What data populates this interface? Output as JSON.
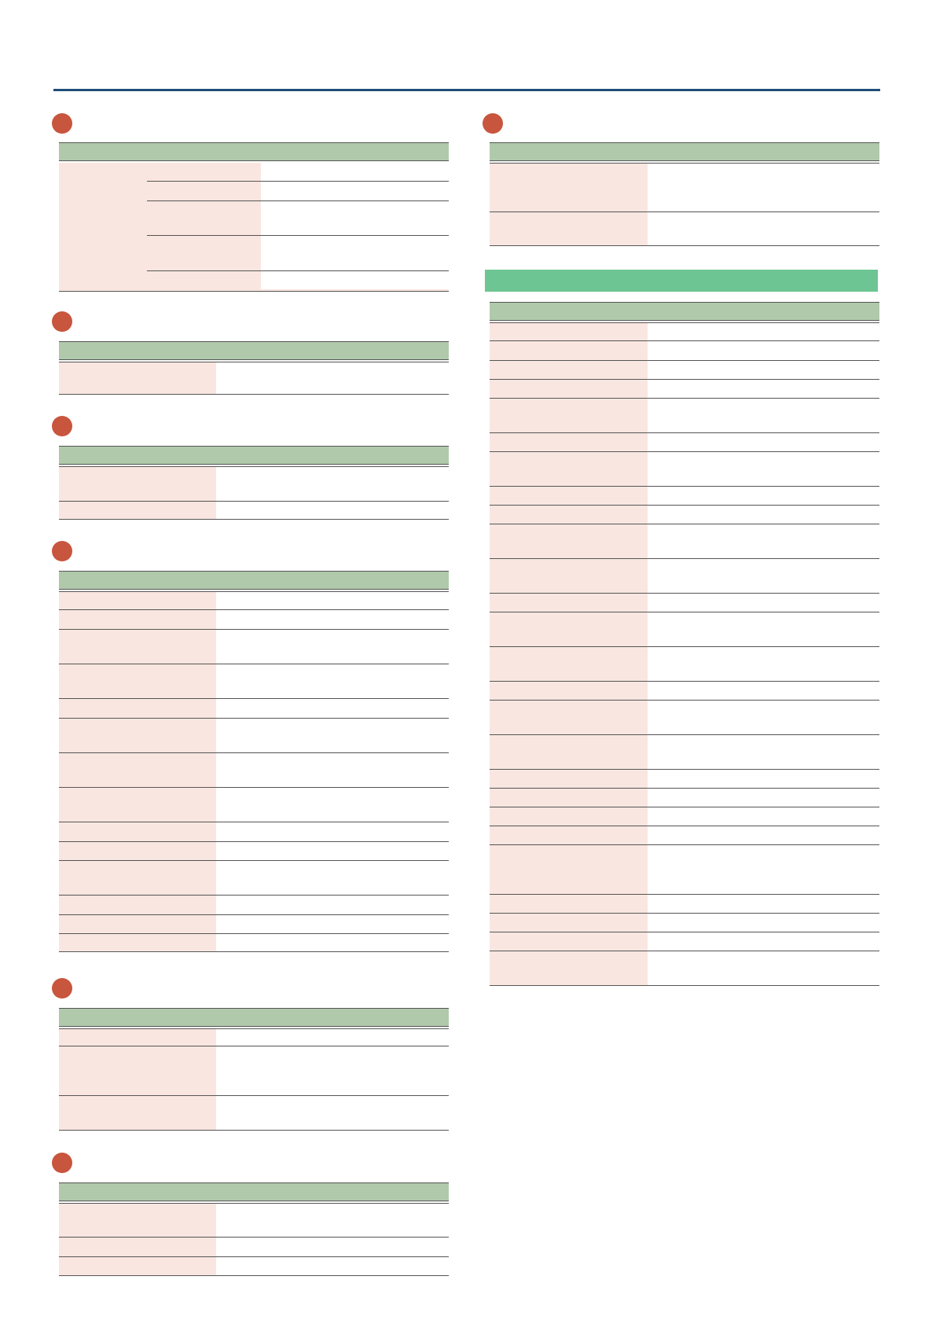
{
  "colors": {
    "rule": "#1f4e79",
    "badge": "#c8553d",
    "header": "#b0c9ab",
    "cell": "#fae6e0",
    "banner": "#6cc592"
  }
}
